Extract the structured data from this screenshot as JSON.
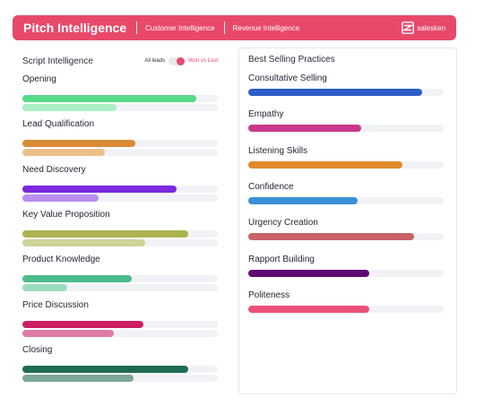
{
  "header": {
    "title": "Pitch Intelligence",
    "tabs": [
      "Customer Intelligence",
      "Revenue Intelligence"
    ],
    "brand": "salesken",
    "accent": "#e8496a"
  },
  "script": {
    "title": "Script Intelligence",
    "filter_left": "All leads",
    "filter_right": "Won vs Lost",
    "toggle_on": true,
    "metrics": [
      {
        "label": "Opening",
        "won": 0.89,
        "lost": 0.48,
        "won_color": "#57d98a",
        "lost_color": "#a9efc3"
      },
      {
        "label": "Lead Qualification",
        "won": 0.58,
        "lost": 0.42,
        "won_color": "#db8a35",
        "lost_color": "#ecbf8a"
      },
      {
        "label": "Need Discovery",
        "won": 0.79,
        "lost": 0.39,
        "won_color": "#7b28e0",
        "lost_color": "#b98df0"
      },
      {
        "label": "Key Value Proposition",
        "won": 0.85,
        "lost": 0.63,
        "won_color": "#adb34f",
        "lost_color": "#cfd49b"
      },
      {
        "label": "Product Knowledge",
        "won": 0.56,
        "lost": 0.23,
        "won_color": "#4dbb8c",
        "lost_color": "#9cdcbe"
      },
      {
        "label": "Price Discussion",
        "won": 0.62,
        "lost": 0.47,
        "won_color": "#cc1f63",
        "lost_color": "#e07ca8"
      },
      {
        "label": "Closing",
        "won": 0.85,
        "lost": 0.57,
        "won_color": "#1f6b52",
        "lost_color": "#7aa896"
      }
    ]
  },
  "practices": {
    "title": "Best Selling Practices",
    "items": [
      {
        "label": "Consultative Selling",
        "value": 0.89,
        "color": "#2d5ec9"
      },
      {
        "label": "Empathy",
        "value": 0.58,
        "color": "#c8388a"
      },
      {
        "label": "Listening Skills",
        "value": 0.79,
        "color": "#e08a2c"
      },
      {
        "label": "Confidence",
        "value": 0.56,
        "color": "#3a8fd8"
      },
      {
        "label": "Urgency Creation",
        "value": 0.85,
        "color": "#c96366"
      },
      {
        "label": "Rapport Building",
        "value": 0.62,
        "color": "#5e0a72"
      },
      {
        "label": "Politeness",
        "value": 0.62,
        "color": "#ec5079"
      }
    ]
  }
}
